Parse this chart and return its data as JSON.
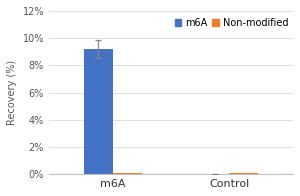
{
  "groups": [
    "m6A",
    "Control"
  ],
  "m6A_values": [
    9.2,
    0.05
  ],
  "nonmod_values": [
    0.08,
    0.08
  ],
  "m6A_errors": [
    0.65,
    0.0
  ],
  "nonmod_errors": [
    0.0,
    0.0
  ],
  "m6A_color": "#4472C4",
  "nonmod_color": "#ED7D31",
  "ylabel": "Recovery (%)",
  "ylim": [
    0,
    0.12
  ],
  "yticks": [
    0,
    0.02,
    0.04,
    0.06,
    0.08,
    0.1,
    0.12
  ],
  "ytick_labels": [
    "0%",
    "2%",
    "4%",
    "6%",
    "8%",
    "10%",
    "12%"
  ],
  "bar_width": 0.25,
  "legend_labels": [
    "m6A",
    "Non-modified"
  ],
  "background_color": "#ffffff",
  "grid_color": "#d9d9d9",
  "font_size": 7,
  "label_font_size": 7,
  "spine_color": "#c0c0c0"
}
